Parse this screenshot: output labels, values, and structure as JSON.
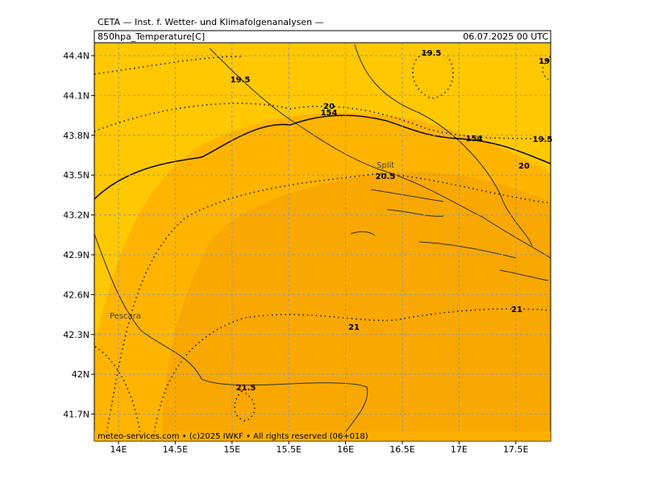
{
  "header": {
    "institute": "CETA — Inst. f. Wetter- und Klimafolgenanalysen —",
    "field": "850hpa_Temperature[C]",
    "valid_time": "06.07.2025 00 UTC"
  },
  "map": {
    "lat_labels": [
      {
        "value": 44.4,
        "label": "44.4N"
      },
      {
        "value": 44.1,
        "label": "44.1N"
      },
      {
        "value": 43.8,
        "label": "43.8N"
      },
      {
        "value": 43.5,
        "label": "43.5N"
      },
      {
        "value": 43.2,
        "label": "43.2N"
      },
      {
        "value": 42.9,
        "label": "42.9N"
      },
      {
        "value": 42.6,
        "label": "42.6N"
      },
      {
        "value": 42.3,
        "label": "42.3N"
      },
      {
        "value": 42,
        "label": "42N"
      },
      {
        "value": 41.7,
        "label": "41.7N"
      }
    ],
    "lon_labels": [
      {
        "value": 14,
        "label": "14E"
      },
      {
        "value": 14.5,
        "label": "14.5E"
      },
      {
        "value": 15,
        "label": "15E"
      },
      {
        "value": 15.5,
        "label": "15.5E"
      },
      {
        "value": 16,
        "label": "16E"
      },
      {
        "value": 16.5,
        "label": "16.5E"
      },
      {
        "value": 17,
        "label": "17E"
      },
      {
        "value": 17.5,
        "label": "17.5E"
      }
    ],
    "contour_labels": [
      "19.5",
      "19.5",
      "19",
      "19.5",
      "20",
      "154",
      "154",
      "20",
      "20.5",
      "21",
      "21",
      "21.5"
    ],
    "cities": [
      "Split",
      "Pescara"
    ]
  },
  "footer": "meteo-services.com • (c)2025 IWKF • All rights reserved (06+018)"
}
